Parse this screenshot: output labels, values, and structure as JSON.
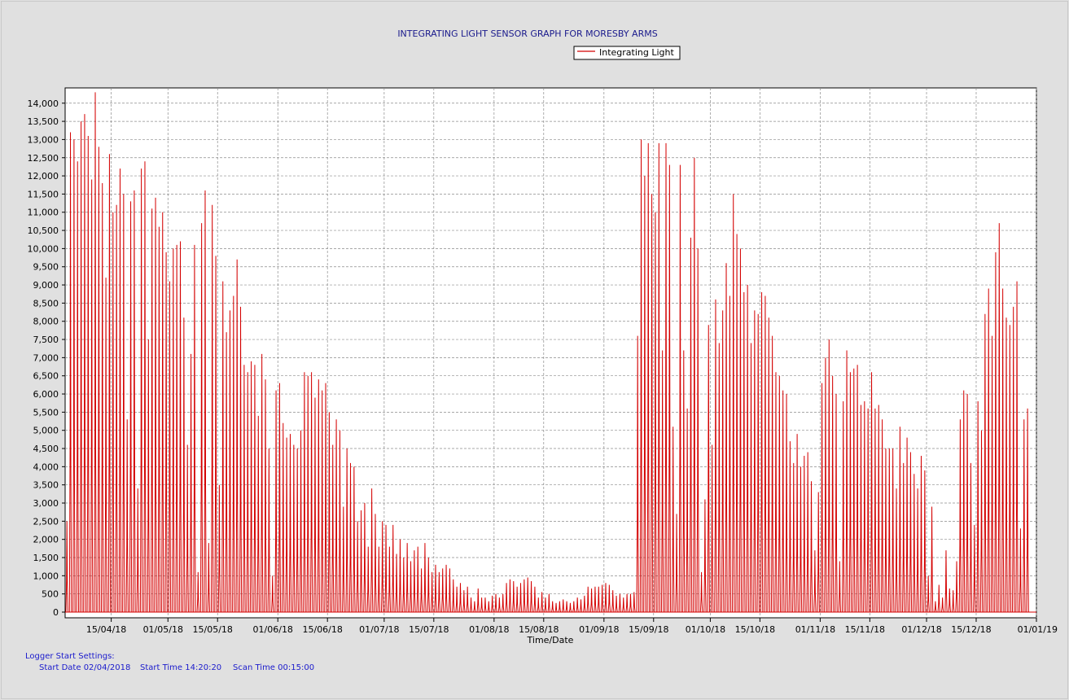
{
  "chart_data": {
    "type": "line",
    "title": "INTEGRATING LIGHT SENSOR GRAPH FOR MORESBY ARMS",
    "xlabel": "Time/Date",
    "ylabel": "",
    "ylim": [
      0,
      14500
    ],
    "y_ticks": [
      0,
      500,
      1000,
      1500,
      2000,
      2500,
      3000,
      3500,
      4000,
      4500,
      5000,
      5500,
      6000,
      6500,
      7000,
      7500,
      8000,
      8500,
      9000,
      9500,
      10000,
      10500,
      11000,
      11500,
      12000,
      12500,
      13000,
      13500,
      14000
    ],
    "y_tick_labels": [
      "0",
      "500",
      "1,000",
      "1,500",
      "2,000",
      "2,500",
      "3,000",
      "3,500",
      "4,000",
      "4,500",
      "5,000",
      "5,500",
      "6,000",
      "6,500",
      "7,000",
      "7,500",
      "8,000",
      "8,500",
      "9,000",
      "9,500",
      "10,000",
      "10,500",
      "11,000",
      "11,500",
      "12,000",
      "12,500",
      "13,000",
      "13,500",
      "14,000"
    ],
    "x_range": [
      "2018-04-02",
      "2019-01-01"
    ],
    "x_ticks": [
      "2018-04-15",
      "2018-05-01",
      "2018-05-15",
      "2018-06-01",
      "2018-06-15",
      "2018-07-01",
      "2018-07-15",
      "2018-08-01",
      "2018-08-15",
      "2018-09-01",
      "2018-09-15",
      "2018-10-01",
      "2018-10-15",
      "2018-11-01",
      "2018-11-15",
      "2018-12-01",
      "2018-12-15",
      "2019-01-01"
    ],
    "x_tick_labels": [
      "15/04/18",
      "01/05/18",
      "15/05/18",
      "01/06/18",
      "15/06/18",
      "01/07/18",
      "15/07/18",
      "01/08/18",
      "15/08/18",
      "01/09/18",
      "15/09/18",
      "01/10/18",
      "15/10/18",
      "01/11/18",
      "15/11/18",
      "01/12/18",
      "15/12/18",
      "01/01/19"
    ],
    "grid": true,
    "legend": "top-center",
    "series": [
      {
        "name": "Integrating Light",
        "color": "#d40000",
        "description_daily_peaks_by_date": {
          "2018-04-02": 2500,
          "2018-04-03": 13200,
          "2018-04-04": 13000,
          "2018-04-05": 12400,
          "2018-04-06": 13500,
          "2018-04-07": 13700,
          "2018-04-08": 13100,
          "2018-04-09": 11900,
          "2018-04-10": 14300,
          "2018-04-11": 12800,
          "2018-04-12": 11800,
          "2018-04-13": 9200,
          "2018-04-14": 12600,
          "2018-04-15": 11000,
          "2018-04-16": 11200,
          "2018-04-17": 12200,
          "2018-04-18": 11500,
          "2018-04-19": 5300,
          "2018-04-20": 11300,
          "2018-04-21": 11600,
          "2018-04-22": 3400,
          "2018-04-23": 12200,
          "2018-04-24": 12400,
          "2018-04-25": 7500,
          "2018-04-26": 11100,
          "2018-04-27": 11400,
          "2018-04-28": 10600,
          "2018-04-29": 11000,
          "2018-04-30": 9900,
          "2018-05-01": 9100,
          "2018-05-02": 10000,
          "2018-05-03": 10100,
          "2018-05-04": 10200,
          "2018-05-05": 8100,
          "2018-05-06": 4600,
          "2018-05-07": 7100,
          "2018-05-08": 10100,
          "2018-05-09": 1100,
          "2018-05-10": 10700,
          "2018-05-11": 11600,
          "2018-05-12": 1900,
          "2018-05-13": 11200,
          "2018-05-14": 9800,
          "2018-05-15": 3500,
          "2018-05-16": 9100,
          "2018-05-17": 7700,
          "2018-05-18": 8300,
          "2018-05-19": 8700,
          "2018-05-20": 9700,
          "2018-05-21": 8400,
          "2018-05-22": 6800,
          "2018-05-23": 6600,
          "2018-05-24": 6900,
          "2018-05-25": 6800,
          "2018-05-26": 5400,
          "2018-05-27": 7100,
          "2018-05-28": 6400,
          "2018-05-29": 4500,
          "2018-05-30": 1000,
          "2018-05-31": 6100,
          "2018-06-01": 6300,
          "2018-06-02": 5200,
          "2018-06-03": 4800,
          "2018-06-04": 4900,
          "2018-06-05": 4600,
          "2018-06-06": 4500,
          "2018-06-07": 5000,
          "2018-06-08": 6600,
          "2018-06-09": 6500,
          "2018-06-10": 6600,
          "2018-06-11": 5900,
          "2018-06-12": 6400,
          "2018-06-13": 6100,
          "2018-06-14": 6300,
          "2018-06-15": 5500,
          "2018-06-16": 4600,
          "2018-06-17": 5300,
          "2018-06-18": 5000,
          "2018-06-19": 2900,
          "2018-06-20": 4500,
          "2018-06-21": 4100,
          "2018-06-22": 4000,
          "2018-06-23": 2500,
          "2018-06-24": 2800,
          "2018-06-25": 3000,
          "2018-06-26": 1800,
          "2018-06-27": 3400,
          "2018-06-28": 2700,
          "2018-06-29": 1800,
          "2018-06-30": 2500,
          "2018-07-01": 2400,
          "2018-07-02": 1800,
          "2018-07-03": 2400,
          "2018-07-04": 1600,
          "2018-07-05": 2000,
          "2018-07-06": 1500,
          "2018-07-07": 1900,
          "2018-07-08": 1400,
          "2018-07-09": 1700,
          "2018-07-10": 1800,
          "2018-07-11": 1200,
          "2018-07-12": 1900,
          "2018-07-13": 1500,
          "2018-07-14": 1100,
          "2018-07-15": 1300,
          "2018-07-16": 1100,
          "2018-07-17": 1200,
          "2018-07-18": 1300,
          "2018-07-19": 1200,
          "2018-07-20": 900,
          "2018-07-21": 700,
          "2018-07-22": 800,
          "2018-07-23": 600,
          "2018-07-24": 700,
          "2018-07-25": 400,
          "2018-07-26": 300,
          "2018-07-27": 650,
          "2018-07-28": 400,
          "2018-07-29": 400,
          "2018-07-30": 300,
          "2018-07-31": 450,
          "2018-08-01": 500,
          "2018-08-02": 400,
          "2018-08-03": 500,
          "2018-08-04": 800,
          "2018-08-05": 900,
          "2018-08-06": 850,
          "2018-08-07": 700,
          "2018-08-08": 800,
          "2018-08-09": 900,
          "2018-08-10": 950,
          "2018-08-11": 850,
          "2018-08-12": 700,
          "2018-08-13": 400,
          "2018-08-14": 550,
          "2018-08-15": 400,
          "2018-08-16": 500,
          "2018-08-17": 300,
          "2018-08-18": 250,
          "2018-08-19": 300,
          "2018-08-20": 350,
          "2018-08-21": 300,
          "2018-08-22": 250,
          "2018-08-23": 300,
          "2018-08-24": 400,
          "2018-08-25": 350,
          "2018-08-26": 450,
          "2018-08-27": 700,
          "2018-08-28": 650,
          "2018-08-29": 700,
          "2018-08-30": 700,
          "2018-08-31": 750,
          "2018-09-01": 800,
          "2018-09-02": 750,
          "2018-09-03": 600,
          "2018-09-04": 450,
          "2018-09-05": 500,
          "2018-09-06": 400,
          "2018-09-07": 500,
          "2018-09-08": 500,
          "2018-09-09": 550,
          "2018-09-10": 7600,
          "2018-09-11": 13000,
          "2018-09-12": 12000,
          "2018-09-13": 12900,
          "2018-09-14": 11500,
          "2018-09-15": 11000,
          "2018-09-16": 12900,
          "2018-09-17": 7200,
          "2018-09-18": 12900,
          "2018-09-19": 12300,
          "2018-09-20": 5100,
          "2018-09-21": 2700,
          "2018-09-22": 12300,
          "2018-09-23": 7200,
          "2018-09-24": 5600,
          "2018-09-25": 10300,
          "2018-09-26": 12500,
          "2018-09-27": 10000,
          "2018-09-28": 1100,
          "2018-09-29": 3100,
          "2018-09-30": 7900,
          "2018-10-01": 4600,
          "2018-10-02": 8600,
          "2018-10-03": 7400,
          "2018-10-04": 8300,
          "2018-10-05": 9600,
          "2018-10-06": 8700,
          "2018-10-07": 11500,
          "2018-10-08": 10400,
          "2018-10-09": 10000,
          "2018-10-10": 8800,
          "2018-10-11": 9000,
          "2018-10-12": 7400,
          "2018-10-13": 8300,
          "2018-10-14": 8200,
          "2018-10-15": 8800,
          "2018-10-16": 8700,
          "2018-10-17": 8100,
          "2018-10-18": 7600,
          "2018-10-19": 6600,
          "2018-10-20": 6500,
          "2018-10-21": 6100,
          "2018-10-22": 6000,
          "2018-10-23": 4700,
          "2018-10-24": 4100,
          "2018-10-25": 4900,
          "2018-10-26": 4000,
          "2018-10-27": 4300,
          "2018-10-28": 4400,
          "2018-10-29": 3600,
          "2018-10-30": 1700,
          "2018-10-31": 3300,
          "2018-11-01": 6300,
          "2018-11-02": 7000,
          "2018-11-03": 7500,
          "2018-11-04": 6500,
          "2018-11-05": 6000,
          "2018-11-06": 1400,
          "2018-11-07": 5800,
          "2018-11-08": 7200,
          "2018-11-09": 6600,
          "2018-11-10": 6700,
          "2018-11-11": 6800,
          "2018-11-12": 5700,
          "2018-11-13": 5800,
          "2018-11-14": 5600,
          "2018-11-15": 6600,
          "2018-11-16": 5600,
          "2018-11-17": 5700,
          "2018-11-18": 5300,
          "2018-11-19": 4500,
          "2018-11-20": 4500,
          "2018-11-21": 4500,
          "2018-11-22": 3400,
          "2018-11-23": 5100,
          "2018-11-24": 4100,
          "2018-11-25": 4800,
          "2018-11-26": 4400,
          "2018-11-27": 3800,
          "2018-11-28": 3400,
          "2018-11-29": 4300,
          "2018-11-30": 3900,
          "2018-12-01": 1000,
          "2018-12-02": 2900,
          "2018-12-03": 300,
          "2018-12-04": 750,
          "2018-12-05": 400,
          "2018-12-06": 1700,
          "2018-12-07": 650,
          "2018-12-08": 600,
          "2018-12-09": 1400,
          "2018-12-10": 5300,
          "2018-12-11": 6100,
          "2018-12-12": 6000,
          "2018-12-13": 4100,
          "2018-12-14": 2400,
          "2018-12-15": 5800,
          "2018-12-16": 5000,
          "2018-12-17": 8200,
          "2018-12-18": 8900,
          "2018-12-19": 7600,
          "2018-12-20": 9900,
          "2018-12-21": 10700,
          "2018-12-22": 8900,
          "2018-12-23": 8100,
          "2018-12-24": 7900,
          "2018-12-25": 8400,
          "2018-12-26": 9100,
          "2018-12-27": 2300,
          "2018-12-28": 5300,
          "2018-12-29": 5600
        }
      }
    ]
  },
  "legend": {
    "label": "Integrating Light"
  },
  "footer": {
    "heading": "Logger Start Settings:",
    "start_date": "Start Date 02/04/2018",
    "start_time": "Start Time 14:20:20",
    "scan_time": "Scan Time 00:15:00"
  },
  "colors": {
    "background": "#e0e0e0",
    "plot_background": "#ffffff",
    "grid": "#8c8c8c",
    "series": "#d40000",
    "title": "#1a1a8c",
    "footer": "#1a1acc"
  }
}
